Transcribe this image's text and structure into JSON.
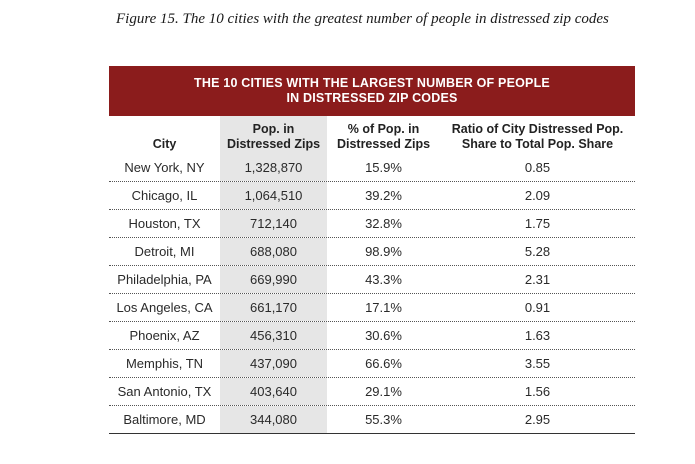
{
  "caption": "Figure 15. The 10 cities with the greatest number of people in distressed zip codes",
  "banner": {
    "line1": "THE 10 CITIES WITH THE LARGEST NUMBER OF PEOPLE",
    "line2": "IN DISTRESSED ZIP CODES"
  },
  "colors": {
    "banner_bg": "#8b1c1c",
    "shaded_column": "#e6e6e6"
  },
  "headers": [
    {
      "line1": "City",
      "line2": ""
    },
    {
      "line1": "Pop. in",
      "line2": "Distressed Zips"
    },
    {
      "line1": "% of Pop. in",
      "line2": "Distressed Zips"
    },
    {
      "line1": "Ratio of City Distressed Pop.",
      "line2": "Share to Total Pop. Share"
    }
  ],
  "rows": [
    [
      "New York, NY",
      "1,328,870",
      "15.9%",
      "0.85"
    ],
    [
      "Chicago, IL",
      "1,064,510",
      "39.2%",
      "2.09"
    ],
    [
      "Houston, TX",
      "712,140",
      "32.8%",
      "1.75"
    ],
    [
      "Detroit, MI",
      "688,080",
      "98.9%",
      "5.28"
    ],
    [
      "Philadelphia, PA",
      "669,990",
      "43.3%",
      "2.31"
    ],
    [
      "Los Angeles, CA",
      "661,170",
      "17.1%",
      "0.91"
    ],
    [
      "Phoenix, AZ",
      "456,310",
      "30.6%",
      "1.63"
    ],
    [
      "Memphis, TN",
      "437,090",
      "66.6%",
      "3.55"
    ],
    [
      "San Antonio, TX",
      "403,640",
      "29.1%",
      "1.56"
    ],
    [
      "Baltimore, MD",
      "344,080",
      "55.3%",
      "2.95"
    ]
  ]
}
